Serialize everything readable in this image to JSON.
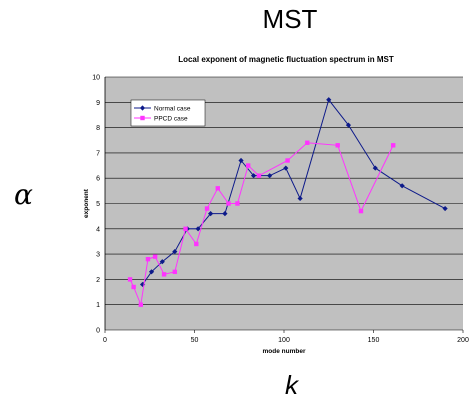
{
  "slide": {
    "title": "MST",
    "alpha_symbol": "α",
    "k_symbol": "k"
  },
  "colors": {
    "plot_background": "#c0c0c0",
    "normal_series": "#0d1a8a",
    "ppcd_series": "#ff33ff"
  },
  "chart_data": {
    "type": "line",
    "title": "Local exponent of magnetic fluctuation spectrum in MST",
    "xlabel": "mode number",
    "ylabel": "exponent",
    "xlim": [
      0,
      200
    ],
    "ylim": [
      0,
      10
    ],
    "xticks": [
      0,
      50,
      100,
      150,
      200
    ],
    "yticks": [
      0,
      1,
      2,
      3,
      4,
      5,
      6,
      7,
      8,
      9,
      10
    ],
    "grid": "horizontal",
    "legend_position": "top-left",
    "series": [
      {
        "name": "Normal case",
        "marker": "diamond",
        "x": [
          21,
          26,
          32,
          39,
          46,
          52,
          59,
          67,
          76,
          83,
          92,
          101,
          109,
          125,
          136,
          151,
          166,
          190
        ],
        "y": [
          1.8,
          2.3,
          2.7,
          3.1,
          4.0,
          4.0,
          4.6,
          4.6,
          6.7,
          6.1,
          6.1,
          6.4,
          5.2,
          9.1,
          8.1,
          6.4,
          5.7,
          4.8
        ]
      },
      {
        "name": "PPCD case",
        "marker": "square",
        "x": [
          14,
          16,
          20,
          24,
          28,
          33,
          39,
          45,
          51,
          57,
          63,
          69,
          74,
          80,
          86,
          102,
          113,
          130,
          143,
          161
        ],
        "y": [
          2.0,
          1.7,
          1.0,
          2.8,
          2.9,
          2.2,
          2.3,
          4.0,
          3.4,
          4.8,
          5.6,
          5.0,
          5.0,
          6.5,
          6.1,
          6.7,
          7.4,
          7.3,
          4.7,
          7.3
        ]
      }
    ]
  }
}
